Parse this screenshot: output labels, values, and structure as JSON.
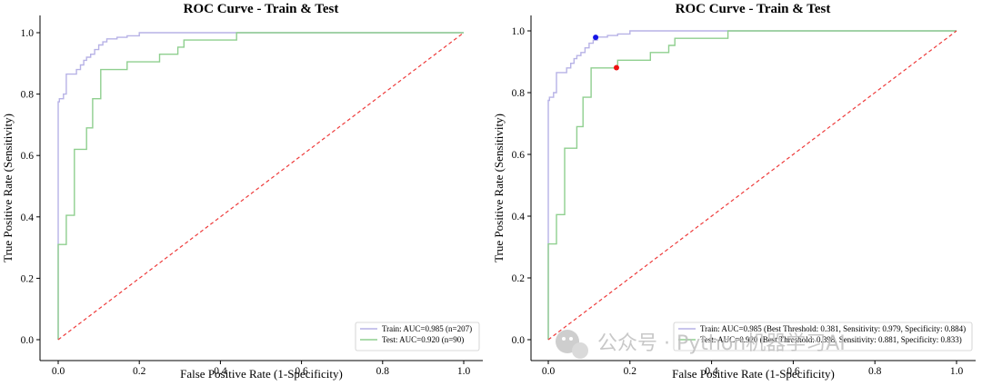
{
  "chart_data": [
    {
      "type": "line",
      "title": "ROC Curve - Train & Test",
      "xlabel": "False Positive Rate (1-Specificity)",
      "ylabel": "True Positive Rate (Sensitivity)",
      "xlim": [
        0.0,
        1.0
      ],
      "ylim": [
        0.0,
        1.0
      ],
      "xticks": [
        "0.0",
        "0.2",
        "0.4",
        "0.6",
        "0.8",
        "1.0"
      ],
      "yticks": [
        "0.0",
        "0.2",
        "0.4",
        "0.6",
        "0.8",
        "1.0"
      ],
      "grid": false,
      "legend_position": "lower-right",
      "series": [
        {
          "name": "Train: AUC=0.985 (n=207)",
          "color": "#b7b2e6",
          "x": [
            0.0,
            0.0,
            0.003,
            0.003,
            0.013,
            0.013,
            0.02,
            0.02,
            0.045,
            0.045,
            0.055,
            0.055,
            0.063,
            0.063,
            0.07,
            0.07,
            0.08,
            0.08,
            0.09,
            0.09,
            0.1,
            0.1,
            0.11,
            0.11,
            0.12,
            0.12,
            0.145,
            0.145,
            0.17,
            0.17,
            0.2,
            0.2,
            1.0
          ],
          "y": [
            0.0,
            0.775,
            0.775,
            0.785,
            0.785,
            0.8,
            0.8,
            0.865,
            0.865,
            0.88,
            0.88,
            0.895,
            0.895,
            0.91,
            0.91,
            0.92,
            0.92,
            0.93,
            0.93,
            0.945,
            0.945,
            0.96,
            0.96,
            0.97,
            0.97,
            0.98,
            0.98,
            0.985,
            0.985,
            0.99,
            0.99,
            1.0,
            1.0
          ]
        },
        {
          "name": "Test: AUC=0.920 (n=90)",
          "color": "#8fcf8f",
          "x": [
            0.0,
            0.0,
            0.02,
            0.02,
            0.04,
            0.04,
            0.07,
            0.07,
            0.085,
            0.085,
            0.105,
            0.105,
            0.17,
            0.17,
            0.25,
            0.25,
            0.295,
            0.295,
            0.31,
            0.31,
            0.33,
            0.33,
            0.44,
            0.44,
            1.0
          ],
          "y": [
            0.0,
            0.31,
            0.31,
            0.405,
            0.405,
            0.62,
            0.62,
            0.69,
            0.69,
            0.785,
            0.785,
            0.88,
            0.88,
            0.905,
            0.905,
            0.93,
            0.93,
            0.953,
            0.953,
            0.976,
            0.976,
            0.976,
            0.976,
            1.0,
            1.0
          ]
        },
        {
          "name": "",
          "color": "#ee3b3b",
          "style": "dashed",
          "x": [
            0.0,
            1.0
          ],
          "y": [
            0.0,
            1.0
          ]
        }
      ],
      "markers": []
    },
    {
      "type": "line",
      "title": "ROC Curve - Train & Test",
      "xlabel": "False Positive Rate (1-Specificity)",
      "ylabel": "True Positive Rate (Sensitivity)",
      "xlim": [
        0.0,
        1.0
      ],
      "ylim": [
        0.0,
        1.0
      ],
      "xticks": [
        "0.0",
        "0.2",
        "0.4",
        "0.6",
        "0.8",
        "1.0"
      ],
      "yticks": [
        "0.0",
        "0.2",
        "0.4",
        "0.6",
        "0.8",
        "1.0"
      ],
      "grid": false,
      "legend_position": "lower-right",
      "series": [
        {
          "name": "Train: AUC=0.985 (Best Threshold: 0.381, Sensitivity: 0.979, Specificity: 0.884)",
          "color": "#b7b2e6",
          "x": [
            0.0,
            0.0,
            0.003,
            0.003,
            0.013,
            0.013,
            0.02,
            0.02,
            0.045,
            0.045,
            0.055,
            0.055,
            0.063,
            0.063,
            0.07,
            0.07,
            0.08,
            0.08,
            0.09,
            0.09,
            0.1,
            0.1,
            0.11,
            0.11,
            0.12,
            0.12,
            0.145,
            0.145,
            0.17,
            0.17,
            0.2,
            0.2,
            1.0
          ],
          "y": [
            0.0,
            0.775,
            0.775,
            0.785,
            0.785,
            0.8,
            0.8,
            0.865,
            0.865,
            0.88,
            0.88,
            0.895,
            0.895,
            0.91,
            0.91,
            0.92,
            0.92,
            0.93,
            0.93,
            0.945,
            0.945,
            0.96,
            0.96,
            0.97,
            0.97,
            0.98,
            0.98,
            0.985,
            0.985,
            0.99,
            0.99,
            1.0,
            1.0
          ]
        },
        {
          "name": "Test: AUC=0.920 (Best Threshold: 0.398, Sensitivity: 0.881, Specificity: 0.833)",
          "color": "#8fcf8f",
          "x": [
            0.0,
            0.0,
            0.02,
            0.02,
            0.04,
            0.04,
            0.07,
            0.07,
            0.085,
            0.085,
            0.105,
            0.105,
            0.17,
            0.17,
            0.25,
            0.25,
            0.295,
            0.295,
            0.31,
            0.31,
            0.33,
            0.33,
            0.44,
            0.44,
            1.0
          ],
          "y": [
            0.0,
            0.31,
            0.31,
            0.405,
            0.405,
            0.62,
            0.62,
            0.69,
            0.69,
            0.785,
            0.785,
            0.88,
            0.88,
            0.905,
            0.905,
            0.93,
            0.93,
            0.953,
            0.953,
            0.976,
            0.976,
            0.976,
            0.976,
            1.0,
            1.0
          ]
        },
        {
          "name": "",
          "color": "#ee3b3b",
          "style": "dashed",
          "x": [
            0.0,
            1.0
          ],
          "y": [
            0.0,
            1.0
          ]
        }
      ],
      "markers": [
        {
          "x": 0.116,
          "y": 0.979,
          "color": "#1515e6"
        },
        {
          "x": 0.167,
          "y": 0.881,
          "color": "#ee1111"
        }
      ]
    }
  ],
  "watermark": {
    "text": "公众号 · Python机器学习AI",
    "icon": "wechat-icon"
  }
}
